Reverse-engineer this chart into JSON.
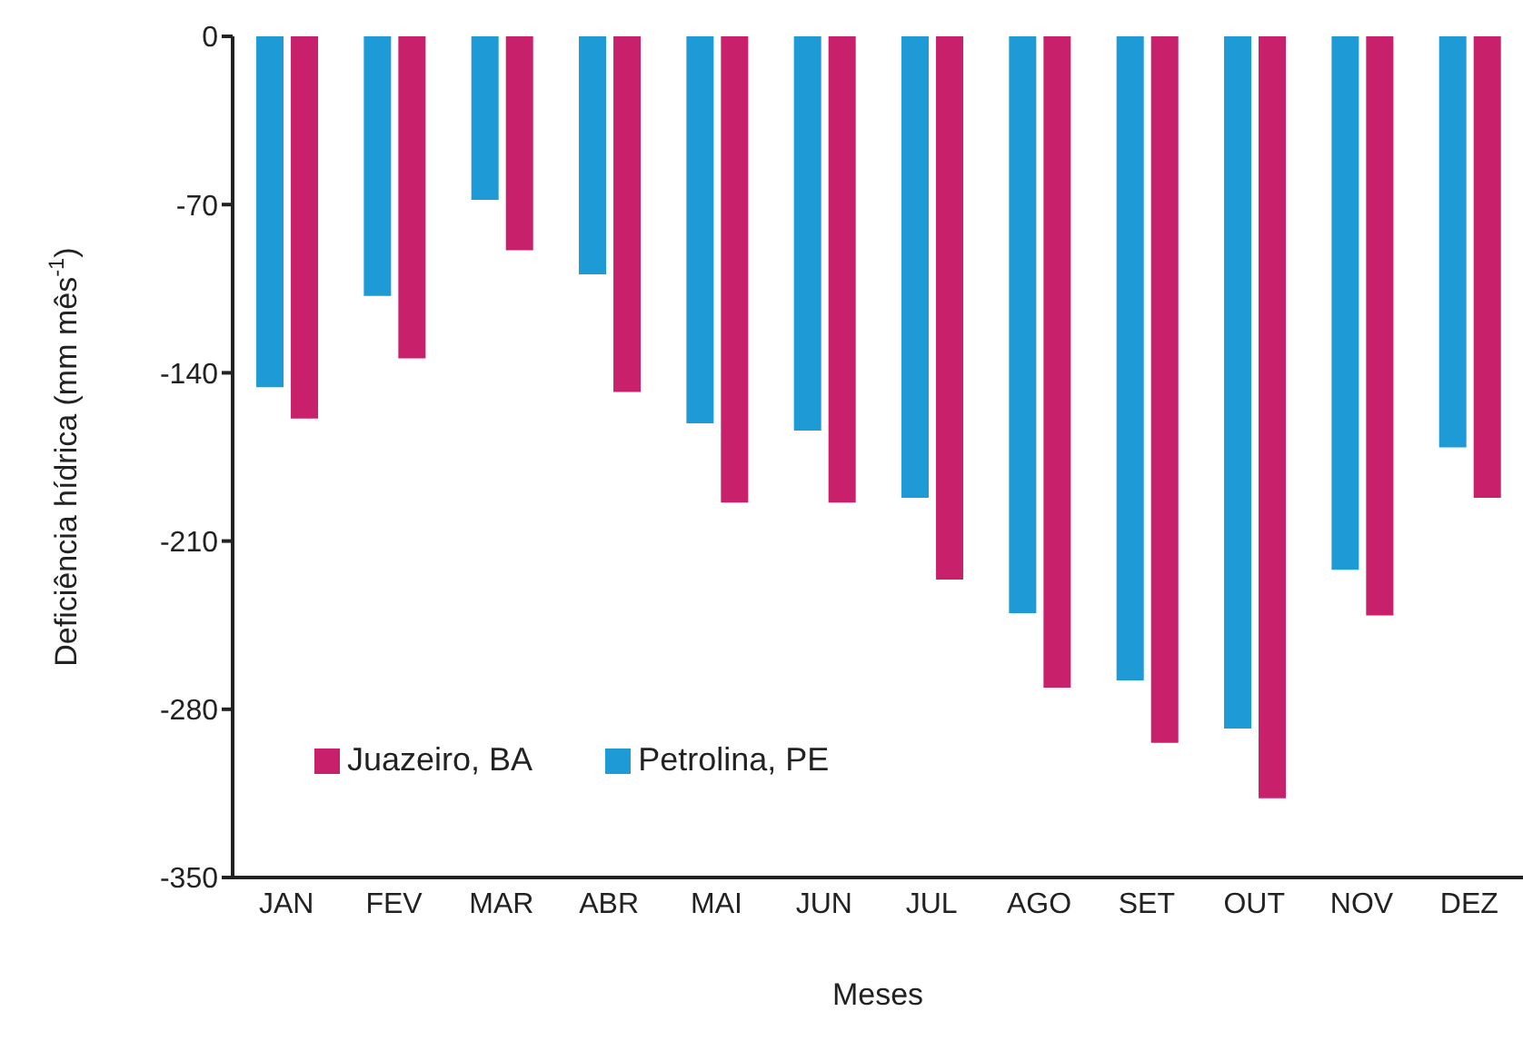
{
  "chart_data": {
    "type": "bar",
    "xlabel": "Meses",
    "ylabel": "Deficiência hídrica (mm mês$^{-1}$)",
    "categories": [
      "JAN",
      "FEV",
      "MAR",
      "ABR",
      "MAI",
      "JUN",
      "JUL",
      "AGO",
      "SET",
      "OUT",
      "NOV",
      "DEZ"
    ],
    "series": [
      {
        "name": "Petrolina, PE",
        "color": "#1e9ad6",
        "values": [
          -146,
          -108,
          -68,
          -99,
          -161,
          -164,
          -192,
          -240,
          -268,
          -288,
          -222,
          -171
        ]
      },
      {
        "name": "Juazeiro, BA",
        "color": "#c8206a",
        "values": [
          -159,
          -134,
          -89,
          -148,
          -194,
          -194,
          -226,
          -271,
          -294,
          -317,
          -241,
          -192
        ]
      }
    ],
    "ylim": [
      -350,
      0
    ],
    "yticks": [
      0,
      -70,
      -140,
      -210,
      -280,
      -350
    ],
    "grid": false,
    "legend": "bottom left"
  }
}
